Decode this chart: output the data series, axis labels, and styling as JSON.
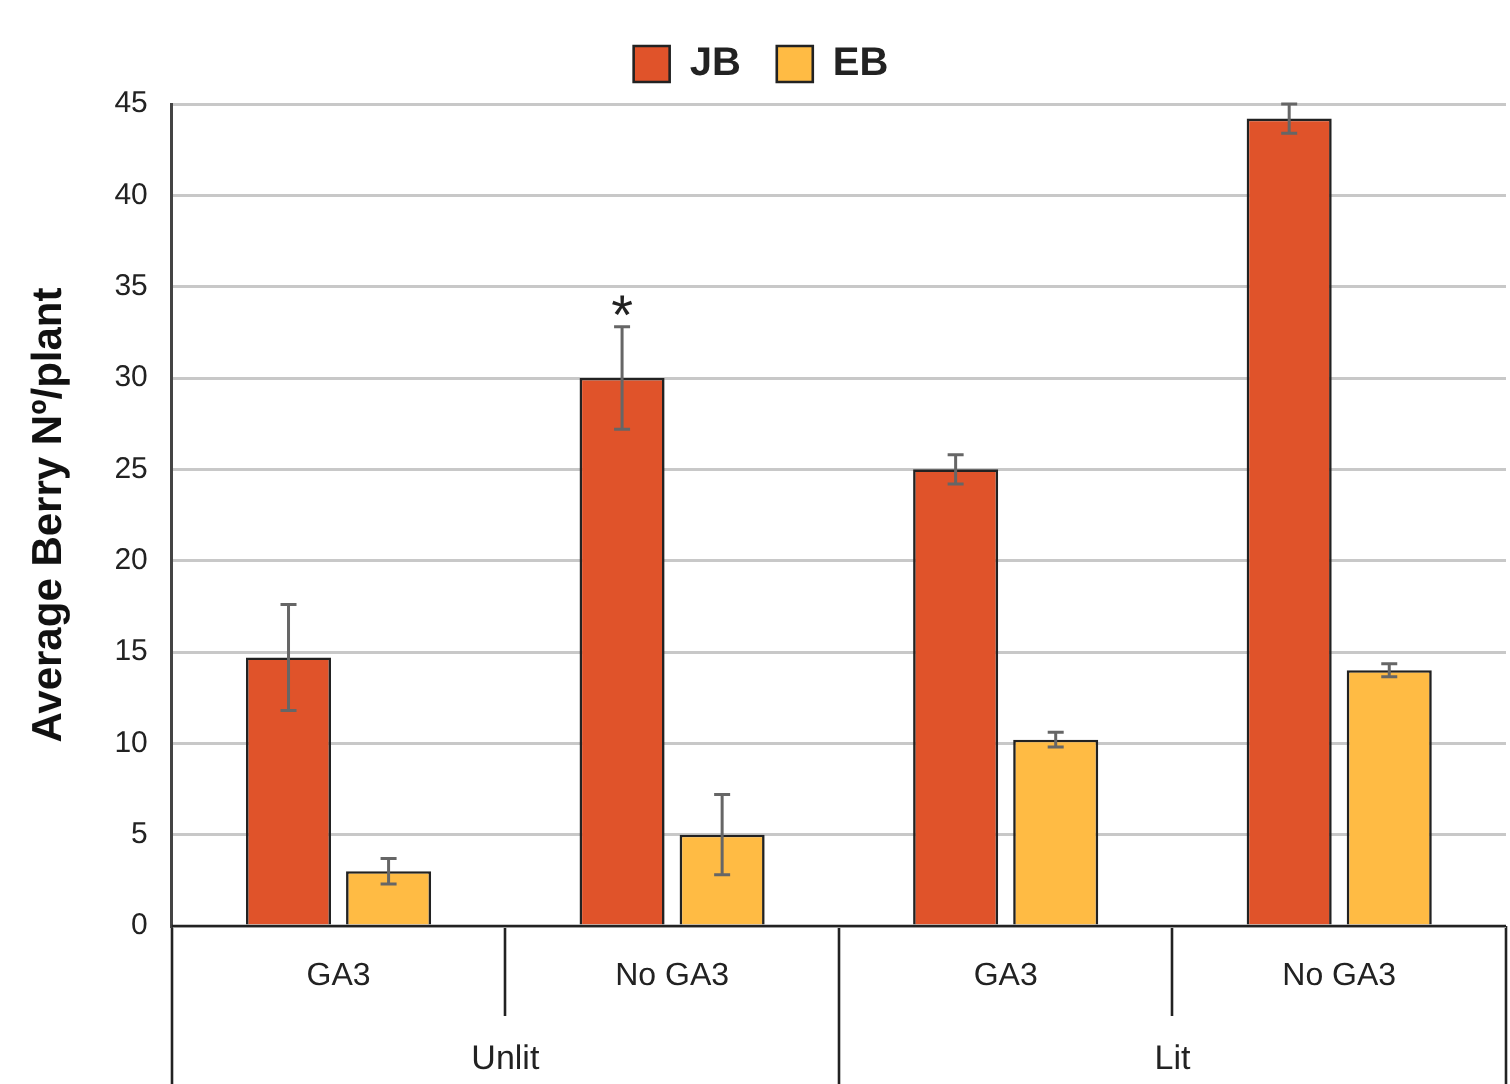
{
  "chart_data": {
    "type": "bar",
    "ylabel": "Average Berry Nº/plant",
    "categories": [
      "GA3",
      "No GA3",
      "GA3",
      "No GA3"
    ],
    "series": [
      {
        "name": "JB",
        "color": "#e0532a",
        "values": [
          14.7,
          30.0,
          25.0,
          44.2
        ],
        "errors": [
          2.9,
          2.8,
          0.8,
          0.8
        ]
      },
      {
        "name": "EB",
        "color": "#ffbb44",
        "values": [
          3.0,
          5.0,
          10.2,
          14.0
        ],
        "errors": [
          0.7,
          2.2,
          0.4,
          0.35
        ]
      }
    ],
    "ylim": [
      0,
      45
    ],
    "yticks": [
      0,
      5,
      10,
      15,
      20,
      25,
      30,
      35,
      40,
      45
    ],
    "grid": "y",
    "legend": "top",
    "annotations": [
      "*",
      "Unlit",
      "Lit"
    ]
  }
}
